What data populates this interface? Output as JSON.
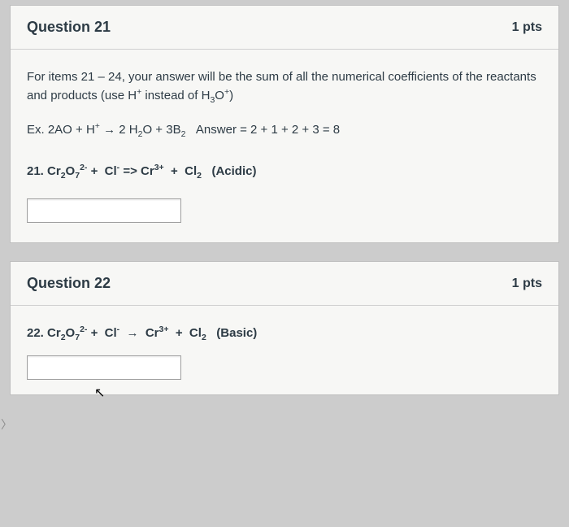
{
  "palette": {
    "page_bg": "#cccccc",
    "card_bg": "#f7f7f5",
    "card_border": "#bfbfbf",
    "divider": "#d0d0d0",
    "text": "#2d3b45",
    "input_bg": "#ffffff",
    "input_border": "#a0a0a0"
  },
  "typography": {
    "title_fontsize": 18,
    "title_weight": 700,
    "body_fontsize": 15,
    "pts_fontsize": 16
  },
  "q21": {
    "title": "Question 21",
    "points": "1 pts",
    "instructions_html": "For items 21 – 24, your answer will be the sum of all the numerical coefficients of the reactants and products (use H<sup>+</sup> instead of H<sub>3</sub>O<sup>+</sup>)",
    "example_html": "Ex. 2AO + H<sup>+</sup> → 2 H<sub>2</sub>O + 3B<sub>2</sub>&nbsp;&nbsp;&nbsp;Answer = 2 + 1 + 2 + 3 = 8",
    "equation_html": "21. Cr<sub>2</sub>O<sub>7</sub><sup>2-</sup> +&nbsp;&nbsp;Cl<sup>-</sup> =&gt; Cr<sup>3+</sup>&nbsp;&nbsp;+&nbsp;&nbsp;Cl<sub>2</sub>&nbsp;&nbsp;&nbsp;(Acidic)",
    "answer_value": ""
  },
  "q22": {
    "title": "Question 22",
    "points": "1 pts",
    "equation_html": "22. Cr<sub>2</sub>O<sub>7</sub><sup>2-</sup> +&nbsp;&nbsp;Cl<sup>-</sup>&nbsp;&nbsp;→&nbsp;&nbsp;Cr<sup>3+</sup>&nbsp;&nbsp;+&nbsp;&nbsp;Cl<sub>2</sub>&nbsp;&nbsp;&nbsp;(Basic)",
    "answer_value": ""
  }
}
